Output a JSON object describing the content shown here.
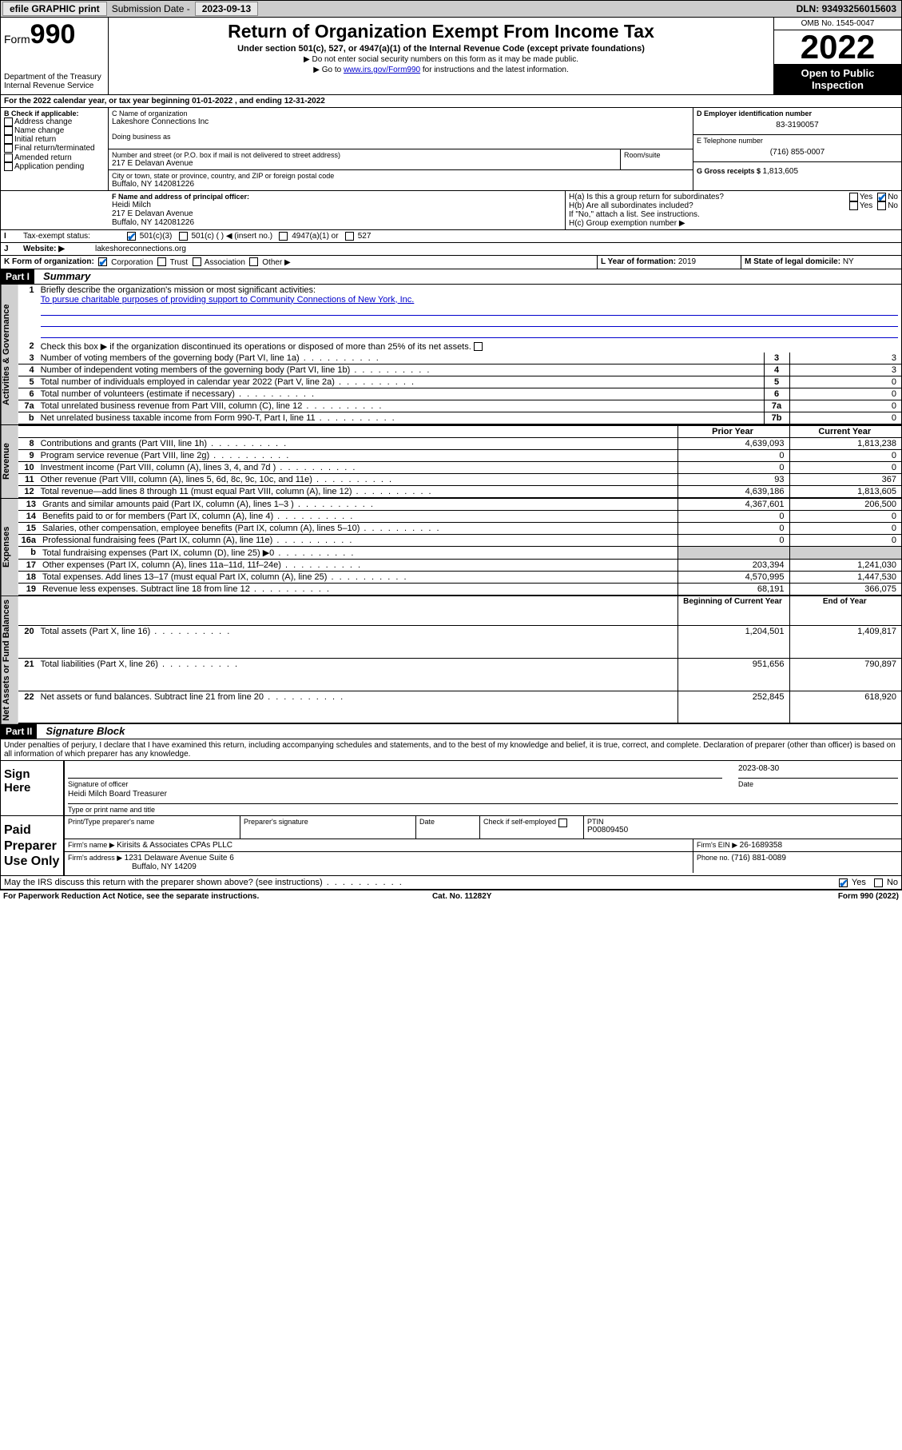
{
  "topbar": {
    "efile": "efile GRAPHIC print",
    "subdate_lbl": "Submission Date - ",
    "subdate": "2023-09-13",
    "dln_lbl": "DLN: ",
    "dln": "93493256015603"
  },
  "header": {
    "form_word": "Form",
    "form_num": "990",
    "dept": "Department of the Treasury",
    "irs": "Internal Revenue Service",
    "title": "Return of Organization Exempt From Income Tax",
    "sub": "Under section 501(c), 527, or 4947(a)(1) of the Internal Revenue Code (except private foundations)",
    "note1": "▶ Do not enter social security numbers on this form as it may be made public.",
    "note2_pre": "▶ Go to ",
    "note2_link": "www.irs.gov/Form990",
    "note2_post": " for instructions and the latest information.",
    "omb": "OMB No. 1545-0047",
    "year": "2022",
    "open": "Open to Public Inspection"
  },
  "line_a": "For the 2022 calendar year, or tax year beginning 01-01-2022     , and ending 12-31-2022",
  "box_b": {
    "title": "B Check if applicable:",
    "opts": [
      "Address change",
      "Name change",
      "Initial return",
      "Final return/terminated",
      "Amended return",
      "Application pending"
    ]
  },
  "box_c": {
    "lbl_name": "C Name of organization",
    "name": "Lakeshore Connections Inc",
    "dba_lbl": "Doing business as",
    "addr_lbl": "Number and street (or P.O. box if mail is not delivered to street address)",
    "room_lbl": "Room/suite",
    "addr": "217 E Delavan Avenue",
    "city_lbl": "City or town, state or province, country, and ZIP or foreign postal code",
    "city": "Buffalo, NY  142081226"
  },
  "box_d": {
    "lbl": "D Employer identification number",
    "val": "83-3190057"
  },
  "box_e": {
    "lbl": "E Telephone number",
    "val": "(716) 855-0007"
  },
  "box_g": {
    "lbl": "G Gross receipts $ ",
    "val": "1,813,605"
  },
  "box_f": {
    "lbl": "F Name and address of principal officer:",
    "name": "Heidi Milch",
    "addr1": "217 E Delavan Avenue",
    "addr2": "Buffalo, NY  142081226"
  },
  "box_h": {
    "ha": "H(a)  Is this a group return for subordinates?",
    "hb": "H(b)  Are all subordinates included?",
    "hb_note": "If \"No,\" attach a list. See instructions.",
    "hc": "H(c)  Group exemption number ▶",
    "yes": "Yes",
    "no": "No"
  },
  "box_i": {
    "lbl": "Tax-exempt status:",
    "o1": "501(c)(3)",
    "o2": "501(c) (  ) ◀ (insert no.)",
    "o3": "4947(a)(1) or",
    "o4": "527"
  },
  "box_j": {
    "lbl": "Website: ▶",
    "val": "lakeshoreconnections.org"
  },
  "box_k": {
    "lbl": "K Form of organization:",
    "o1": "Corporation",
    "o2": "Trust",
    "o3": "Association",
    "o4": "Other ▶"
  },
  "box_l": {
    "lbl": "L Year of formation: ",
    "val": "2019"
  },
  "box_m": {
    "lbl": "M State of legal domicile: ",
    "val": "NY"
  },
  "part1": {
    "hdr": "Part I",
    "title": "Summary"
  },
  "summary": {
    "q1": "Briefly describe the organization's mission or most significant activities:",
    "mission": "To pursue charitable purposes of providing support to Community Connections of New York, Inc.",
    "q2": "Check this box ▶          if the organization discontinued its operations or disposed of more than 25% of its net assets.",
    "rows_governance": [
      {
        "n": "3",
        "t": "Number of voting members of the governing body (Part VI, line 1a)",
        "ln": "3",
        "v": "3"
      },
      {
        "n": "4",
        "t": "Number of independent voting members of the governing body (Part VI, line 1b)",
        "ln": "4",
        "v": "3"
      },
      {
        "n": "5",
        "t": "Total number of individuals employed in calendar year 2022 (Part V, line 2a)",
        "ln": "5",
        "v": "0"
      },
      {
        "n": "6",
        "t": "Total number of volunteers (estimate if necessary)",
        "ln": "6",
        "v": "0"
      },
      {
        "n": "7a",
        "t": "Total unrelated business revenue from Part VIII, column (C), line 12",
        "ln": "7a",
        "v": "0"
      },
      {
        "n": "b",
        "t": "Net unrelated business taxable income from Form 990-T, Part I, line 11",
        "ln": "7b",
        "v": "0"
      }
    ],
    "col_prior": "Prior Year",
    "col_current": "Current Year",
    "rows_revenue": [
      {
        "n": "8",
        "t": "Contributions and grants (Part VIII, line 1h)",
        "p": "4,639,093",
        "c": "1,813,238"
      },
      {
        "n": "9",
        "t": "Program service revenue (Part VIII, line 2g)",
        "p": "0",
        "c": "0"
      },
      {
        "n": "10",
        "t": "Investment income (Part VIII, column (A), lines 3, 4, and 7d )",
        "p": "0",
        "c": "0"
      },
      {
        "n": "11",
        "t": "Other revenue (Part VIII, column (A), lines 5, 6d, 8c, 9c, 10c, and 11e)",
        "p": "93",
        "c": "367"
      },
      {
        "n": "12",
        "t": "Total revenue—add lines 8 through 11 (must equal Part VIII, column (A), line 12)",
        "p": "4,639,186",
        "c": "1,813,605"
      }
    ],
    "rows_expenses": [
      {
        "n": "13",
        "t": "Grants and similar amounts paid (Part IX, column (A), lines 1–3 )",
        "p": "4,367,601",
        "c": "206,500"
      },
      {
        "n": "14",
        "t": "Benefits paid to or for members (Part IX, column (A), line 4)",
        "p": "0",
        "c": "0"
      },
      {
        "n": "15",
        "t": "Salaries, other compensation, employee benefits (Part IX, column (A), lines 5–10)",
        "p": "0",
        "c": "0"
      },
      {
        "n": "16a",
        "t": "Professional fundraising fees (Part IX, column (A), line 11e)",
        "p": "0",
        "c": "0"
      },
      {
        "n": "b",
        "t": "Total fundraising expenses (Part IX, column (D), line 25) ▶0",
        "p": "",
        "c": "",
        "gray": true
      },
      {
        "n": "17",
        "t": "Other expenses (Part IX, column (A), lines 11a–11d, 11f–24e)",
        "p": "203,394",
        "c": "1,241,030"
      },
      {
        "n": "18",
        "t": "Total expenses. Add lines 13–17 (must equal Part IX, column (A), line 25)",
        "p": "4,570,995",
        "c": "1,447,530"
      },
      {
        "n": "19",
        "t": "Revenue less expenses. Subtract line 18 from line 12",
        "p": "68,191",
        "c": "366,075"
      }
    ],
    "col_begin": "Beginning of Current Year",
    "col_end": "End of Year",
    "rows_net": [
      {
        "n": "20",
        "t": "Total assets (Part X, line 16)",
        "p": "1,204,501",
        "c": "1,409,817"
      },
      {
        "n": "21",
        "t": "Total liabilities (Part X, line 26)",
        "p": "951,656",
        "c": "790,897"
      },
      {
        "n": "22",
        "t": "Net assets or fund balances. Subtract line 21 from line 20",
        "p": "252,845",
        "c": "618,920"
      }
    ],
    "vtab_gov": "Activities & Governance",
    "vtab_rev": "Revenue",
    "vtab_exp": "Expenses",
    "vtab_net": "Net Assets or Fund Balances"
  },
  "part2": {
    "hdr": "Part II",
    "title": "Signature Block"
  },
  "sig": {
    "decl": "Under penalties of perjury, I declare that I have examined this return, including accompanying schedules and statements, and to the best of my knowledge and belief, it is true, correct, and complete. Declaration of preparer (other than officer) is based on all information of which preparer has any knowledge.",
    "sign_here": "Sign Here",
    "sig_officer": "Signature of officer",
    "date_lbl": "Date",
    "date": "2023-08-30",
    "name_title": "Heidi Milch  Board Treasurer",
    "type_lbl": "Type or print name and title",
    "paid": "Paid Preparer Use Only",
    "prep_name_lbl": "Print/Type preparer's name",
    "prep_sig_lbl": "Preparer's signature",
    "check_self": "Check          if self-employed",
    "ptin_lbl": "PTIN",
    "ptin": "P00809450",
    "firm_name_lbl": "Firm's name   ▶ ",
    "firm_name": "Kirisits & Associates CPAs PLLC",
    "firm_ein_lbl": "Firm's EIN ▶ ",
    "firm_ein": "26-1689358",
    "firm_addr_lbl": "Firm's address ▶ ",
    "firm_addr": "1231 Delaware Avenue Suite 6",
    "firm_addr2": "Buffalo, NY  14209",
    "phone_lbl": "Phone no. ",
    "phone": "(716) 881-0089",
    "discuss": "May the IRS discuss this return with the preparer shown above? (see instructions)",
    "yes": "Yes",
    "no": "No"
  },
  "footer": {
    "left": "For Paperwork Reduction Act Notice, see the separate instructions.",
    "mid": "Cat. No. 11282Y",
    "right": "Form 990 (2022)"
  }
}
